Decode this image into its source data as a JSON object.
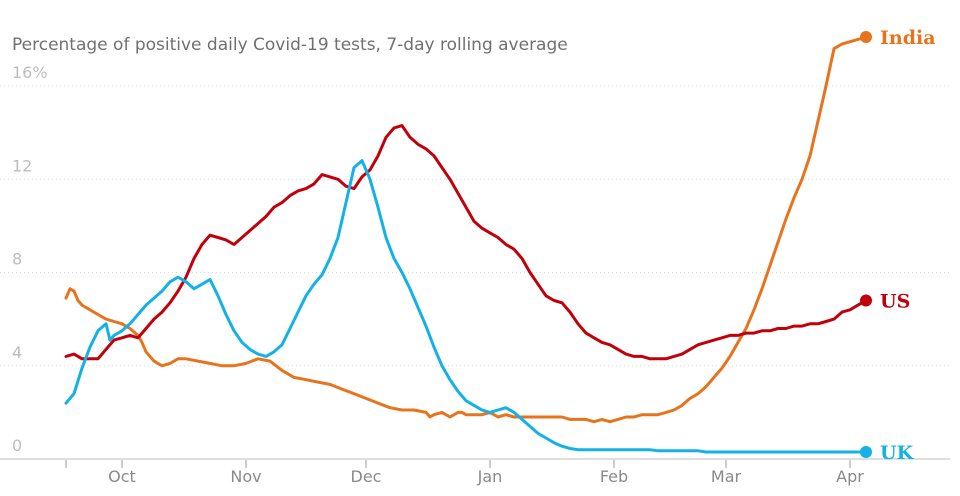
{
  "chart_data": {
    "type": "line",
    "title": "Percentage of positive daily Covid-19 tests, 7-day rolling average",
    "xlabel": "",
    "ylabel": "",
    "x_unit": "days since 2020-09-20",
    "xlim": [
      -7,
      228
    ],
    "ylim": [
      0,
      17.5
    ],
    "yticks": [
      0,
      4,
      8,
      12,
      16
    ],
    "ytick_labels": [
      "0",
      "4",
      "8",
      "12",
      "16%"
    ],
    "xticks": [
      {
        "label": "Oct",
        "x": 14
      },
      {
        "label": "Nov",
        "x": 45
      },
      {
        "label": "Dec",
        "x": 75
      },
      {
        "label": "Jan",
        "x": 106
      },
      {
        "label": "Feb",
        "x": 137
      },
      {
        "label": "Mar",
        "x": 165
      },
      {
        "label": "Apr",
        "x": 196
      }
    ],
    "grid": true,
    "legend": "direct labels at line ends",
    "series": [
      {
        "name": "India",
        "color": "#e8731d",
        "x": [
          0,
          1,
          2,
          3,
          4,
          5,
          6,
          8,
          10,
          12,
          14,
          16,
          18,
          19,
          20,
          22,
          24,
          26,
          28,
          30,
          33,
          36,
          39,
          42,
          45,
          48,
          51,
          54,
          57,
          60,
          63,
          66,
          69,
          72,
          75,
          78,
          81,
          84,
          87,
          90,
          91,
          92,
          94,
          96,
          98,
          99,
          100,
          102,
          104,
          106,
          108,
          110,
          112,
          114,
          116,
          118,
          120,
          122,
          124,
          126,
          128,
          130,
          132,
          134,
          136,
          138,
          140,
          142,
          144,
          146,
          148,
          150,
          152,
          154,
          156,
          158,
          160,
          162,
          164,
          166,
          168,
          170,
          172,
          174,
          176,
          178,
          180,
          182,
          184,
          186,
          188,
          190,
          192,
          194,
          196,
          198,
          200
        ],
        "values": [
          6.9,
          7.3,
          7.2,
          6.8,
          6.6,
          6.5,
          6.4,
          6.2,
          6.0,
          5.9,
          5.8,
          5.6,
          5.3,
          5.0,
          4.6,
          4.2,
          4.0,
          4.1,
          4.3,
          4.3,
          4.2,
          4.1,
          4.0,
          4.0,
          4.1,
          4.3,
          4.2,
          3.8,
          3.5,
          3.4,
          3.3,
          3.2,
          3.0,
          2.8,
          2.6,
          2.4,
          2.2,
          2.1,
          2.1,
          2.0,
          1.8,
          1.9,
          2.0,
          1.8,
          2.0,
          2.0,
          1.9,
          1.9,
          1.9,
          2.0,
          1.8,
          1.9,
          1.8,
          1.8,
          1.8,
          1.8,
          1.8,
          1.8,
          1.8,
          1.7,
          1.7,
          1.7,
          1.6,
          1.7,
          1.6,
          1.7,
          1.8,
          1.8,
          1.9,
          1.9,
          1.9,
          2.0,
          2.1,
          2.3,
          2.6,
          2.8,
          3.1,
          3.5,
          3.9,
          4.4,
          5.0,
          5.6,
          6.4,
          7.3,
          8.3,
          9.3,
          10.3,
          11.2,
          12.0,
          13.0,
          14.5,
          16.0,
          17.6,
          17.8,
          17.9,
          18.0,
          18.1
        ]
      },
      {
        "name": "US",
        "color": "#c2000b",
        "x": [
          0,
          2,
          4,
          6,
          8,
          10,
          12,
          14,
          16,
          18,
          20,
          22,
          24,
          26,
          28,
          30,
          32,
          34,
          36,
          38,
          40,
          42,
          44,
          46,
          48,
          50,
          52,
          54,
          56,
          58,
          60,
          62,
          64,
          66,
          68,
          70,
          72,
          74,
          76,
          78,
          80,
          82,
          84,
          86,
          88,
          90,
          92,
          94,
          96,
          98,
          100,
          102,
          104,
          106,
          108,
          110,
          112,
          114,
          116,
          118,
          120,
          122,
          124,
          126,
          128,
          130,
          132,
          134,
          136,
          138,
          140,
          142,
          144,
          146,
          148,
          150,
          152,
          154,
          156,
          158,
          160,
          162,
          164,
          166,
          168,
          170,
          172,
          174,
          176,
          178,
          180,
          182,
          184,
          186,
          188,
          190,
          192,
          194,
          196,
          198,
          200
        ],
        "values": [
          4.4,
          4.5,
          4.3,
          4.3,
          4.3,
          4.7,
          5.1,
          5.2,
          5.3,
          5.2,
          5.6,
          6.0,
          6.3,
          6.7,
          7.2,
          7.8,
          8.6,
          9.2,
          9.6,
          9.5,
          9.4,
          9.2,
          9.5,
          9.8,
          10.1,
          10.4,
          10.8,
          11.0,
          11.3,
          11.5,
          11.6,
          11.8,
          12.2,
          12.1,
          12.0,
          11.7,
          11.6,
          12.1,
          12.4,
          13.0,
          13.8,
          14.2,
          14.3,
          13.8,
          13.5,
          13.3,
          13.0,
          12.5,
          12.0,
          11.4,
          10.8,
          10.2,
          9.9,
          9.7,
          9.5,
          9.2,
          9.0,
          8.6,
          8.0,
          7.5,
          7.0,
          6.8,
          6.7,
          6.3,
          5.8,
          5.4,
          5.2,
          5.0,
          4.9,
          4.7,
          4.5,
          4.4,
          4.4,
          4.3,
          4.3,
          4.3,
          4.4,
          4.5,
          4.7,
          4.9,
          5.0,
          5.1,
          5.2,
          5.3,
          5.3,
          5.4,
          5.4,
          5.5,
          5.5,
          5.6,
          5.6,
          5.7,
          5.7,
          5.8,
          5.8,
          5.9,
          6.0,
          6.3,
          6.4,
          6.6,
          6.8
        ]
      },
      {
        "name": "UK",
        "color": "#14b1e7",
        "x": [
          0,
          2,
          4,
          6,
          8,
          10,
          11,
          12,
          14,
          16,
          18,
          20,
          22,
          24,
          26,
          28,
          30,
          32,
          34,
          36,
          38,
          40,
          42,
          44,
          46,
          48,
          50,
          52,
          54,
          56,
          58,
          60,
          62,
          64,
          66,
          68,
          70,
          72,
          74,
          76,
          78,
          80,
          82,
          84,
          86,
          88,
          90,
          92,
          94,
          96,
          98,
          100,
          102,
          104,
          106,
          108,
          110,
          112,
          114,
          116,
          118,
          120,
          122,
          124,
          126,
          128,
          130,
          132,
          134,
          136,
          138,
          140,
          142,
          144,
          146,
          148,
          150,
          152,
          154,
          156,
          158,
          160,
          162,
          164,
          166,
          168,
          170,
          172,
          174,
          176,
          178,
          180,
          182,
          184,
          186,
          188,
          190,
          192,
          194,
          196,
          198,
          200
        ],
        "values": [
          2.4,
          2.8,
          3.9,
          4.8,
          5.5,
          5.8,
          5.1,
          5.3,
          5.5,
          5.8,
          6.2,
          6.6,
          6.9,
          7.2,
          7.6,
          7.8,
          7.6,
          7.3,
          7.5,
          7.7,
          7.0,
          6.2,
          5.5,
          5.0,
          4.7,
          4.5,
          4.4,
          4.6,
          4.9,
          5.6,
          6.3,
          7.0,
          7.5,
          7.9,
          8.6,
          9.5,
          11.0,
          12.5,
          12.8,
          12.0,
          10.8,
          9.5,
          8.6,
          8.0,
          7.3,
          6.5,
          5.7,
          4.8,
          4.0,
          3.4,
          2.9,
          2.5,
          2.3,
          2.1,
          2.0,
          2.1,
          2.2,
          2.0,
          1.7,
          1.4,
          1.1,
          0.9,
          0.7,
          0.55,
          0.45,
          0.4,
          0.4,
          0.4,
          0.4,
          0.4,
          0.4,
          0.4,
          0.4,
          0.4,
          0.4,
          0.35,
          0.35,
          0.35,
          0.35,
          0.35,
          0.35,
          0.3,
          0.3,
          0.3,
          0.3,
          0.3,
          0.3,
          0.3,
          0.3,
          0.3,
          0.3,
          0.3,
          0.3,
          0.3,
          0.3,
          0.3,
          0.3,
          0.3,
          0.3,
          0.3,
          0.3,
          0.3
        ]
      }
    ]
  }
}
